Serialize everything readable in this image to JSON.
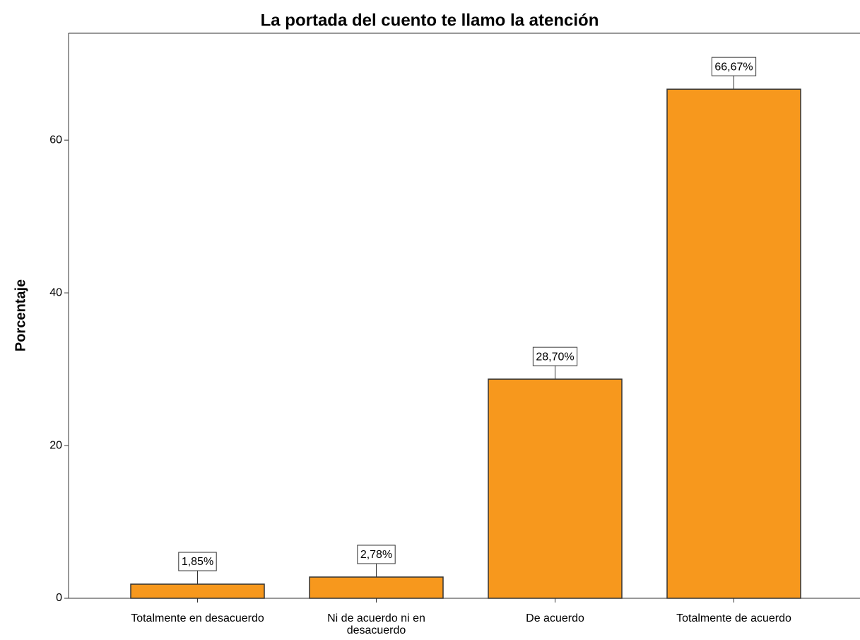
{
  "chart_data": {
    "type": "bar",
    "title": "La portada del cuento te llamo la atención",
    "y_label": "Porcentaje",
    "categories": [
      "Totalmente en desacuerdo",
      "Ni de acuerdo ni en desacuerdo",
      "De acuerdo",
      "Totalmente de acuerdo"
    ],
    "values": [
      1.85,
      2.78,
      28.7,
      66.67
    ],
    "value_labels": [
      "1,85%",
      "2,78%",
      "28,70%",
      "66,67%"
    ],
    "color": "#f7981d",
    "ylim": [
      0,
      74
    ],
    "yticks": [
      0,
      20,
      40,
      60
    ],
    "grid": false
  }
}
